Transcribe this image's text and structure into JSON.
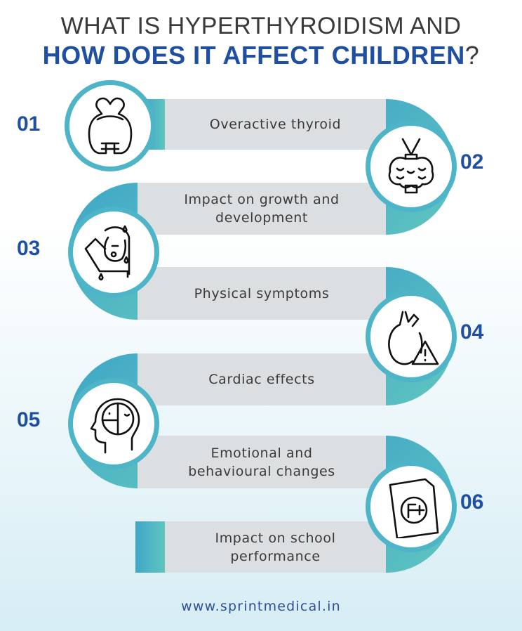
{
  "title": {
    "line1": "WHAT IS HYPERTHYROIDISM AND",
    "line2": "HOW DOES IT AFFECT CHILDREN",
    "line2_suffix": "?"
  },
  "steps": [
    {
      "number": "01",
      "label": "Overactive thyroid",
      "icon": "thyroid-icon"
    },
    {
      "number": "02",
      "label": "Impact on growth and development",
      "icon": "thyroid-gland-icon"
    },
    {
      "number": "03",
      "label": "Physical symptoms",
      "icon": "sweating-person-icon"
    },
    {
      "number": "04",
      "label": "Cardiac effects",
      "icon": "heart-warning-icon"
    },
    {
      "number": "05",
      "label": "Emotional and behavioural changes",
      "icon": "head-mood-icon"
    },
    {
      "number": "06",
      "label": "Impact on school performance",
      "icon": "failing-grade-icon"
    }
  ],
  "footer": "www.sprintmedical.in",
  "colors": {
    "accent_blue": "#1f4fa0",
    "teal": "#4db5c7",
    "bar_gray": "#dcdfe1"
  }
}
